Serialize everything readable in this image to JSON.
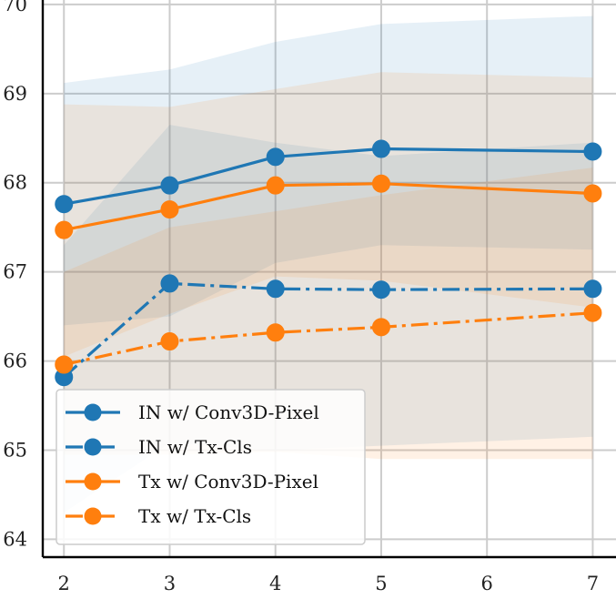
{
  "chart_data": {
    "type": "line",
    "x": [
      2,
      3,
      4,
      5,
      6,
      7
    ],
    "xlim": [
      1.8,
      7.22
    ],
    "ylim": [
      63.8,
      70.05
    ],
    "xticks": [
      "2",
      "3",
      "4",
      "5",
      "6",
      "7"
    ],
    "yticks": [
      "64",
      "65",
      "66",
      "67",
      "68",
      "69",
      "70"
    ],
    "grid": true,
    "legend_position": "lower-left",
    "series": [
      {
        "name": "IN w/ Conv3D-Pixel",
        "color": "#1f77b4",
        "linestyle": "solid",
        "x": [
          2,
          3,
          4,
          5,
          7
        ],
        "values": [
          67.76,
          67.97,
          68.29,
          68.38,
          68.35
        ],
        "band_lower": [
          66.4,
          66.5,
          67.1,
          67.3,
          67.25
        ],
        "band_upper": [
          69.12,
          69.27,
          69.58,
          69.78,
          69.87
        ]
      },
      {
        "name": "IN w/ Tx-Cls",
        "color": "#1f77b4",
        "linestyle": "dashdot",
        "x": [
          2,
          3,
          4,
          5,
          7
        ],
        "values": [
          65.82,
          66.87,
          66.81,
          66.8,
          66.81
        ],
        "band_lower": [
          64.3,
          65.08,
          65.0,
          65.05,
          65.15
        ],
        "band_upper": [
          67.3,
          68.65,
          68.45,
          68.3,
          68.45
        ]
      },
      {
        "name": "Tx w/ Conv3D-Pixel",
        "color": "#ff7f0e",
        "linestyle": "solid",
        "x": [
          2,
          3,
          4,
          5,
          7
        ],
        "values": [
          67.47,
          67.7,
          67.97,
          67.99,
          67.88
        ],
        "band_lower": [
          66.05,
          66.53,
          66.95,
          66.9,
          66.6
        ],
        "band_upper": [
          68.88,
          68.85,
          69.05,
          69.24,
          69.18
        ]
      },
      {
        "name": "Tx w/ Tx-Cls",
        "color": "#ff7f0e",
        "linestyle": "dashdot",
        "x": [
          2,
          3,
          4,
          5,
          7
        ],
        "values": [
          65.96,
          66.22,
          66.32,
          66.38,
          66.54
        ],
        "band_lower": [
          64.95,
          64.95,
          64.98,
          64.9,
          64.9
        ],
        "band_upper": [
          67.0,
          67.5,
          67.68,
          67.86,
          68.17
        ]
      }
    ]
  }
}
